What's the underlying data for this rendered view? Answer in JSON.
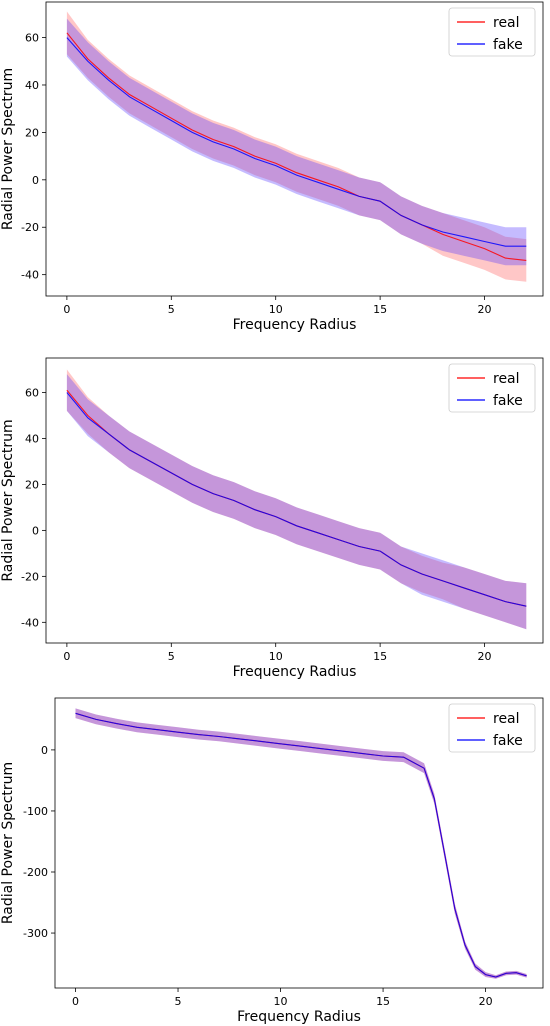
{
  "chart_data": [
    {
      "type": "line",
      "xlabel": "Frequency Radius",
      "ylabel": "Radial Power Spectrum",
      "xlim": [
        -1,
        22.8
      ],
      "ylim": [
        -49,
        75
      ],
      "xticks": [
        0,
        5,
        10,
        15,
        20
      ],
      "yticks": [
        60,
        40,
        20,
        0,
        -20,
        -40
      ],
      "grid": false,
      "legend_position": "top-right",
      "x": [
        0,
        1,
        2,
        3,
        4,
        5,
        6,
        7,
        8,
        9,
        10,
        11,
        12,
        13,
        14,
        15,
        16,
        17,
        18,
        19,
        20,
        21,
        22
      ],
      "series": [
        {
          "name": "real",
          "color": "#ff0000",
          "values": [
            62,
            51,
            43,
            36,
            31,
            26,
            21,
            17,
            14,
            10,
            7,
            3,
            0,
            -3,
            -7,
            -9,
            -15,
            -19,
            -23,
            -26,
            -29,
            -33,
            -34
          ],
          "band_half_width": [
            9,
            8,
            8,
            8,
            8,
            8,
            8,
            8,
            8,
            8,
            8,
            8,
            8,
            8,
            8,
            8,
            8,
            8,
            9,
            9,
            9,
            9,
            9
          ]
        },
        {
          "name": "fake",
          "color": "#0000ff",
          "values": [
            60,
            50,
            42,
            35,
            30,
            25,
            20,
            16,
            13,
            9,
            6,
            2,
            -1,
            -4,
            -7,
            -9,
            -15,
            -19,
            -22,
            -24,
            -26,
            -28,
            -28
          ],
          "band_half_width": [
            8,
            8,
            8,
            8,
            8,
            8,
            8,
            8,
            8,
            8,
            8,
            8,
            8,
            8,
            8,
            8,
            8,
            8,
            8,
            8,
            8,
            8,
            8
          ]
        }
      ]
    },
    {
      "type": "line",
      "xlabel": "Frequency Radius",
      "ylabel": "Radial Power Spectrum",
      "xlim": [
        -1,
        22.8
      ],
      "ylim": [
        -49,
        75
      ],
      "xticks": [
        0,
        5,
        10,
        15,
        20
      ],
      "yticks": [
        60,
        40,
        20,
        0,
        -20,
        -40
      ],
      "grid": false,
      "legend_position": "top-right",
      "x": [
        0,
        1,
        2,
        3,
        4,
        5,
        6,
        7,
        8,
        9,
        10,
        11,
        12,
        13,
        14,
        15,
        16,
        17,
        18,
        19,
        20,
        21,
        22
      ],
      "series": [
        {
          "name": "real",
          "color": "#ff0000",
          "values": [
            61,
            50,
            42,
            35,
            30,
            25,
            20,
            16,
            13,
            9,
            6,
            2,
            -1,
            -4,
            -7,
            -9,
            -15,
            -19,
            -22,
            -25,
            -28,
            -31,
            -33
          ],
          "band_half_width": [
            9,
            8,
            8,
            8,
            8,
            8,
            8,
            8,
            8,
            8,
            8,
            8,
            8,
            8,
            8,
            8,
            8,
            8,
            8,
            9,
            9,
            9,
            10
          ]
        },
        {
          "name": "fake",
          "color": "#0000ff",
          "values": [
            60,
            49,
            42,
            35,
            30,
            25,
            20,
            16,
            13,
            9,
            6,
            2,
            -1,
            -4,
            -7,
            -9,
            -15,
            -19,
            -22,
            -25,
            -28,
            -31,
            -33
          ],
          "band_half_width": [
            8,
            8,
            8,
            8,
            8,
            8,
            8,
            8,
            8,
            8,
            8,
            8,
            8,
            8,
            8,
            8,
            8,
            9,
            9,
            9,
            9,
            9,
            10
          ]
        }
      ]
    },
    {
      "type": "line",
      "xlabel": "Frequency Radius",
      "ylabel": "Radial Power Spectrum",
      "xlim": [
        -1,
        22.8
      ],
      "ylim": [
        -390,
        85
      ],
      "xticks": [
        0,
        5,
        10,
        15,
        20
      ],
      "yticks": [
        0,
        -100,
        -200,
        -300
      ],
      "grid": false,
      "legend_position": "top-right",
      "x": [
        0,
        1,
        2,
        3,
        4,
        5,
        6,
        7,
        8,
        9,
        10,
        11,
        12,
        13,
        14,
        15,
        16,
        17,
        17.5,
        18,
        18.5,
        19,
        19.5,
        20,
        20.5,
        21,
        21.5,
        22
      ],
      "series": [
        {
          "name": "real",
          "color": "#ff0000",
          "values": [
            60,
            50,
            43,
            37,
            33,
            29,
            25,
            22,
            18,
            14,
            10,
            6,
            2,
            -2,
            -6,
            -10,
            -12,
            -30,
            -80,
            -170,
            -260,
            -320,
            -355,
            -368,
            -372,
            -366,
            -365,
            -370
          ],
          "band_half_width": [
            8,
            8,
            8,
            8,
            8,
            8,
            8,
            8,
            8,
            8,
            8,
            8,
            8,
            8,
            8,
            8,
            8,
            8,
            8,
            8,
            8,
            6,
            5,
            4,
            3,
            3,
            3,
            3
          ]
        },
        {
          "name": "fake",
          "color": "#0000ff",
          "values": [
            60,
            50,
            43,
            37,
            33,
            29,
            25,
            22,
            18,
            14,
            10,
            6,
            2,
            -2,
            -6,
            -10,
            -12,
            -30,
            -80,
            -170,
            -260,
            -320,
            -355,
            -368,
            -372,
            -366,
            -365,
            -370
          ],
          "band_half_width": [
            8,
            8,
            8,
            8,
            8,
            8,
            8,
            8,
            8,
            8,
            8,
            8,
            8,
            8,
            8,
            8,
            8,
            8,
            8,
            8,
            8,
            6,
            5,
            4,
            3,
            3,
            3,
            3
          ]
        }
      ]
    }
  ]
}
